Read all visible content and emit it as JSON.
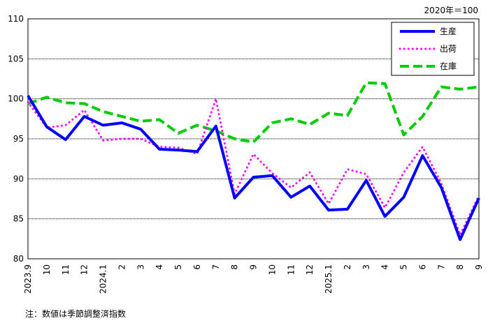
{
  "unit_label": "2020年＝100",
  "footnote": "注：数値は季節調整済指数",
  "chart_data": {
    "type": "line",
    "title": "",
    "xlabel": "",
    "ylabel": "",
    "ylim": [
      80,
      110
    ],
    "yticks": [
      80,
      85,
      90,
      95,
      100,
      105,
      110
    ],
    "grid": "horizontal",
    "legend_position": "top-right",
    "categories": [
      "2023.9",
      "10",
      "11",
      "12",
      "2024.1",
      "2",
      "3",
      "4",
      "5",
      "6",
      "7",
      "8",
      "9",
      "10",
      "11",
      "12",
      "2025.1",
      "2",
      "3",
      "4",
      "5",
      "6",
      "7",
      "8",
      "9"
    ],
    "series": [
      {
        "name": "生産",
        "color": "#0000ff",
        "style": "solid",
        "values": [
          100.4,
          96.5,
          94.9,
          97.8,
          96.7,
          97.0,
          96.2,
          93.7,
          93.6,
          93.4,
          96.6,
          87.6,
          90.2,
          90.4,
          87.7,
          89.1,
          86.1,
          86.2,
          89.8,
          85.3,
          87.7,
          92.9,
          88.9,
          82.4,
          87.6
        ]
      },
      {
        "name": "出荷",
        "color": "#ff00ff",
        "style": "dotted",
        "values": [
          99.6,
          96.4,
          96.7,
          98.6,
          94.8,
          95.0,
          95.0,
          94.0,
          93.9,
          93.1,
          100.0,
          88.1,
          93.1,
          90.7,
          88.9,
          90.8,
          86.9,
          91.2,
          90.6,
          86.4,
          90.8,
          94.0,
          89.4,
          83.0,
          87.9
        ]
      },
      {
        "name": "在庫",
        "color": "#00cc00",
        "style": "dashed",
        "values": [
          99.4,
          100.2,
          99.5,
          99.4,
          98.4,
          97.8,
          97.2,
          97.4,
          95.7,
          96.7,
          96.0,
          95.0,
          94.6,
          97.0,
          97.5,
          96.8,
          98.2,
          97.9,
          102.0,
          101.9,
          95.5,
          97.8,
          101.5,
          101.2,
          101.5
        ]
      }
    ]
  }
}
